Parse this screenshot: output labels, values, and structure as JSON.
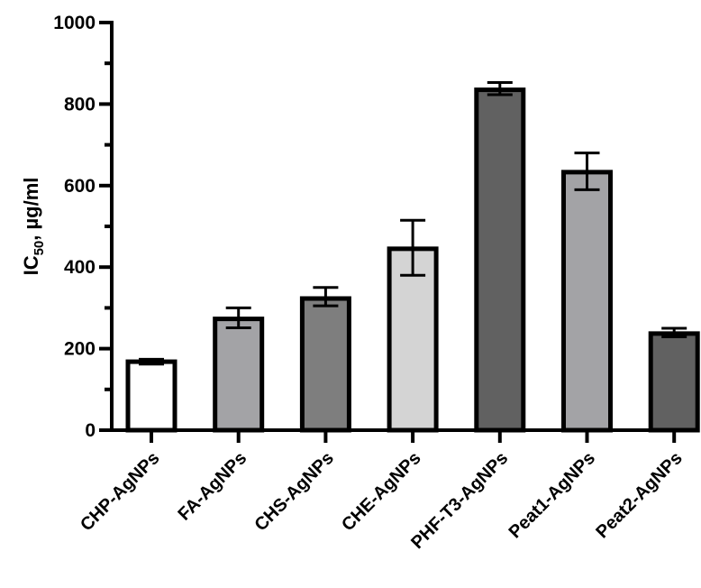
{
  "chart_data": {
    "type": "bar",
    "title": "",
    "xlabel": "",
    "ylabel": "IC50, µg/ml",
    "ylabel_parts": {
      "main": "IC",
      "sub": "50",
      "rest": ", µg/ml"
    },
    "ylim": [
      0,
      1000
    ],
    "yticks": [
      0,
      200,
      400,
      600,
      800,
      1000
    ],
    "minor_yticks": [
      100,
      300,
      500,
      700,
      900
    ],
    "grid": false,
    "legend": null,
    "categories": [
      "CHP-AgNPs",
      "FA-AgNPs",
      "CHS-AgNPs",
      "CHE-AgNPs",
      "PHF-T3-AgNPs",
      "Peat1-AgNPs",
      "Peat2-AgNPs"
    ],
    "values": [
      168,
      273,
      323,
      445,
      835,
      633,
      237
    ],
    "error_plus": [
      6,
      27,
      27,
      70,
      18,
      47,
      13
    ],
    "error_minus": [
      6,
      22,
      18,
      65,
      12,
      43,
      8
    ],
    "colors": [
      "#ffffff",
      "#a3a3a6",
      "#7e7e7e",
      "#d4d4d4",
      "#616161",
      "#a3a3a6",
      "#616161"
    ]
  }
}
